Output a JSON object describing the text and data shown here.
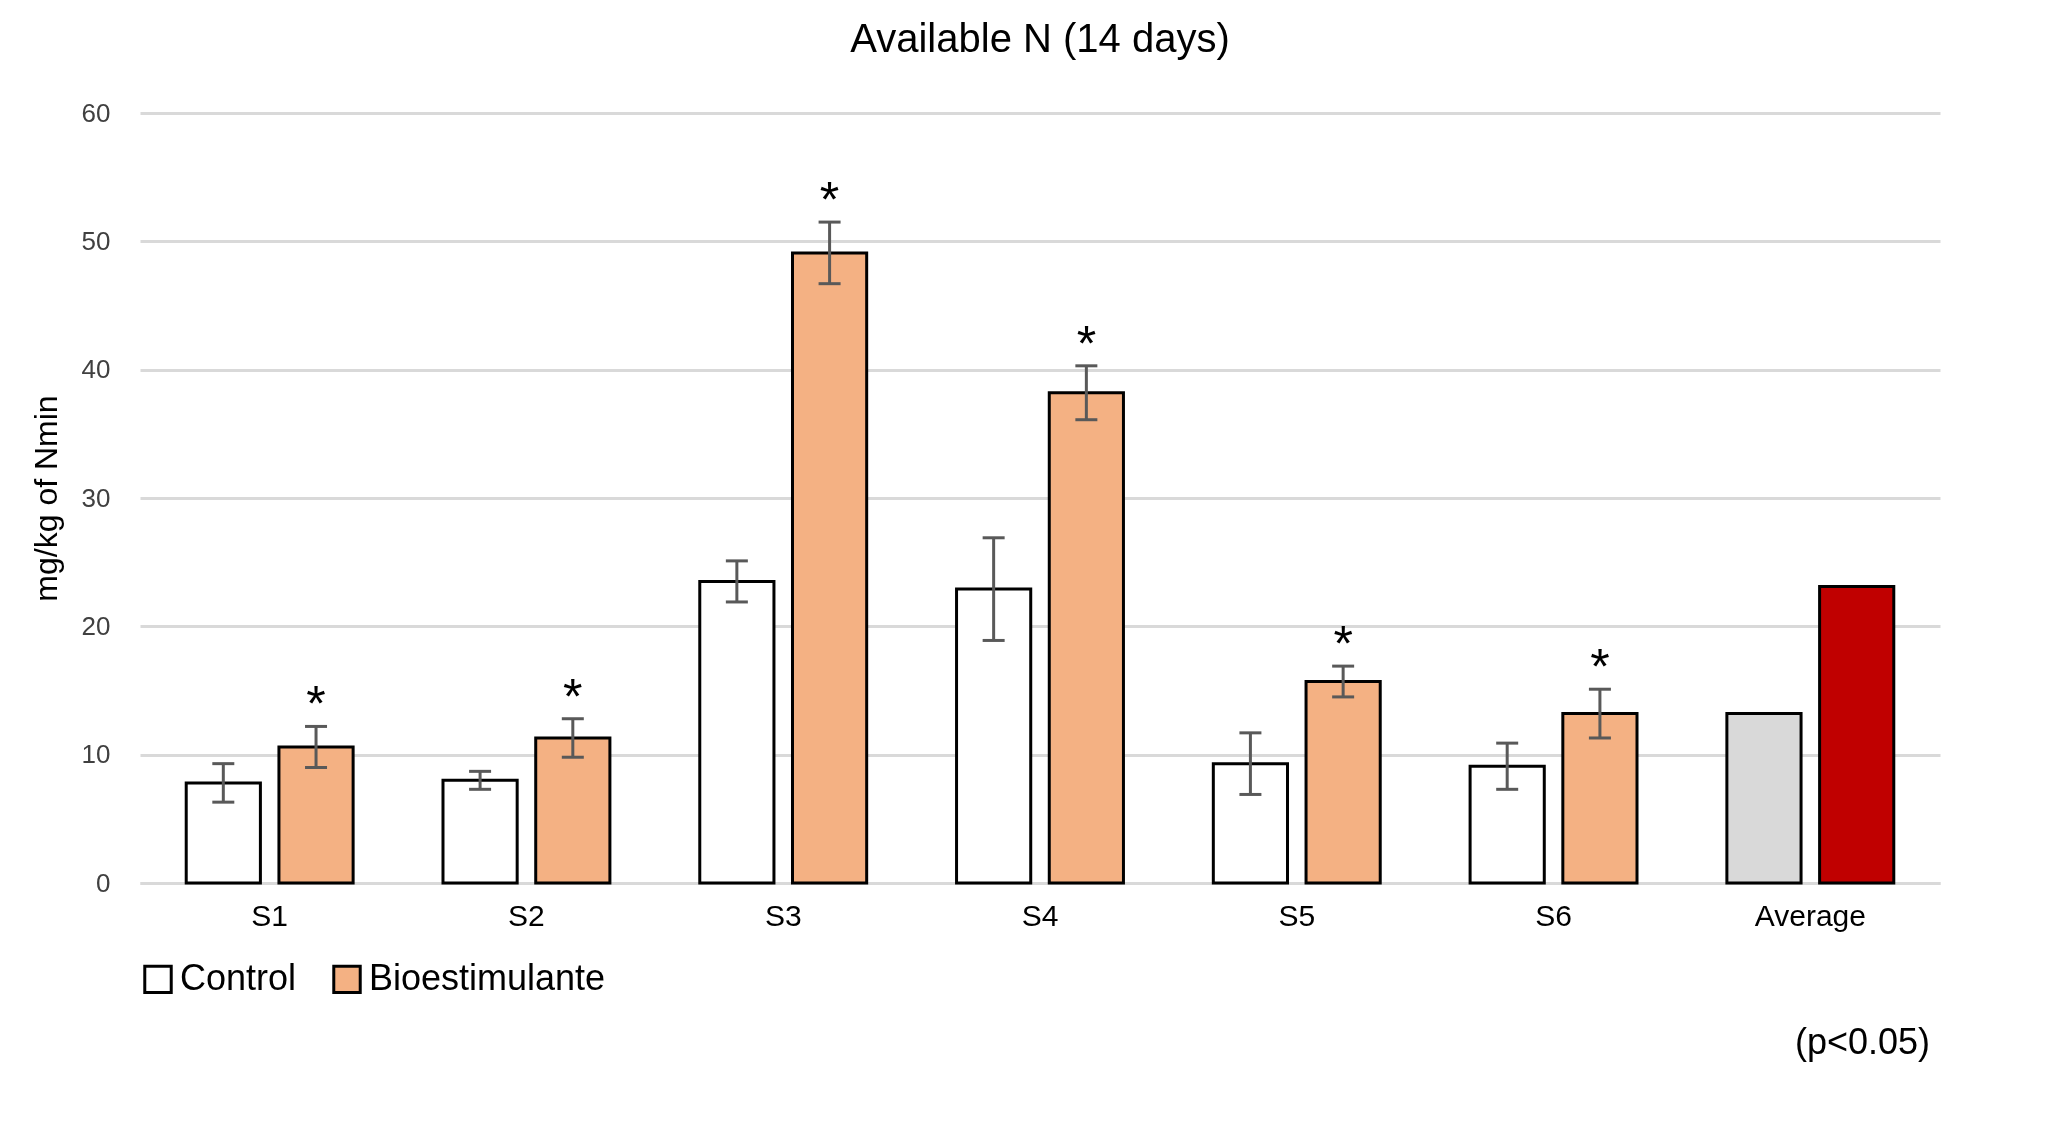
{
  "chart_data": {
    "type": "bar",
    "title": "Available N (14 days)",
    "ylabel": "mg/kg of Nmin",
    "categories": [
      "S1",
      "S2",
      "S3",
      "S4",
      "S5",
      "S6",
      "Average"
    ],
    "series": [
      {
        "name": "Control",
        "color": "#ffffff",
        "colors": [
          "#ffffff",
          "#ffffff",
          "#ffffff",
          "#ffffff",
          "#ffffff",
          "#ffffff",
          "#d9d9d9"
        ],
        "values": [
          7.8,
          8.0,
          23.5,
          22.9,
          9.3,
          9.1,
          13.2
        ],
        "errors": [
          1.5,
          0.7,
          1.6,
          4.0,
          2.4,
          1.8,
          null
        ]
      },
      {
        "name": "Bioestimulante",
        "color": "#f4b183",
        "colors": [
          "#f4b183",
          "#f4b183",
          "#f4b183",
          "#f4b183",
          "#f4b183",
          "#f4b183",
          "#c00000"
        ],
        "values": [
          10.6,
          11.3,
          49.1,
          38.2,
          15.7,
          13.2,
          23.1
        ],
        "errors": [
          1.6,
          1.5,
          2.4,
          2.1,
          1.2,
          1.9,
          null
        ],
        "value_labels": [
          "*",
          "*",
          "*",
          "*",
          "*",
          "*",
          null
        ]
      }
    ],
    "ylim": [
      0,
      60
    ],
    "yticks": [
      0,
      10,
      20,
      30,
      40,
      50,
      60
    ],
    "grid": "y",
    "legend": "bottom",
    "annotations": [
      "(p<0.05)"
    ]
  }
}
